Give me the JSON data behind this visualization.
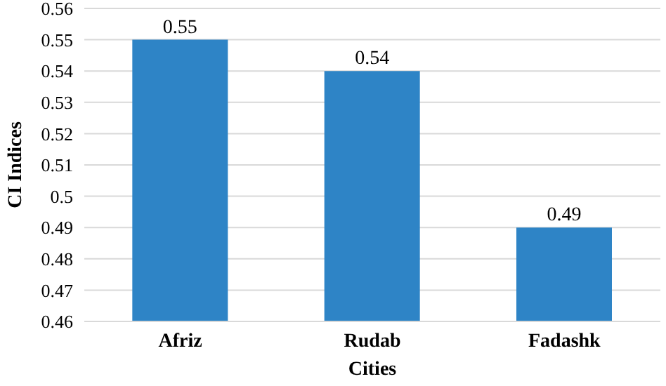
{
  "chart_data": {
    "type": "bar",
    "xlabel": "Cities",
    "ylabel": "CI Indices",
    "categories": [
      "Afriz",
      "Rudab",
      "Fadashk"
    ],
    "values": [
      0.55,
      0.54,
      0.49
    ],
    "color": "#2e84c6",
    "ylim": [
      0.46,
      0.56
    ],
    "yticks": [
      0.46,
      0.47,
      0.48,
      0.49,
      0.5,
      0.51,
      0.52,
      0.53,
      0.54,
      0.55,
      0.56
    ],
    "grid": "y",
    "data_labels": true
  }
}
